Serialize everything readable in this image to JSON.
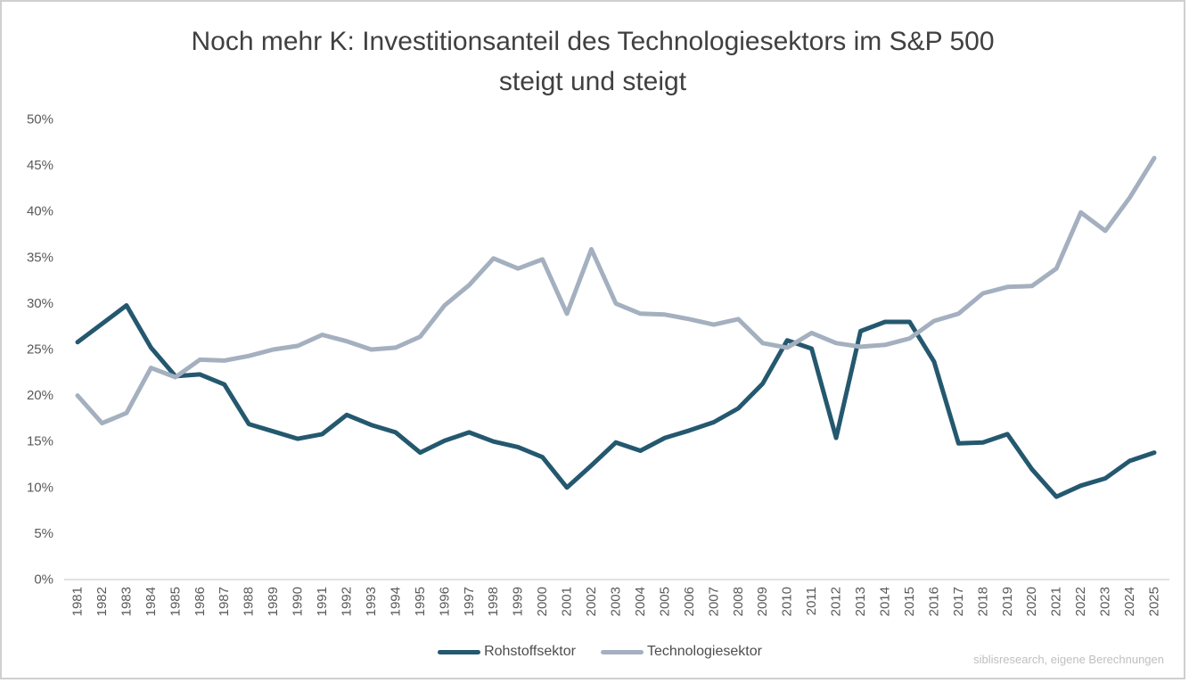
{
  "title": {
    "line1": "Noch mehr K: Investitionsanteil des Technologiesektors im S&P 500",
    "line2": "steigt und steigt"
  },
  "footer": {
    "source": "siblisresearch, eigene Berechnungen"
  },
  "legend": {
    "items": [
      {
        "label": "Rohstoffsektor",
        "color": "#24586f"
      },
      {
        "label": "Technologiesektor",
        "color": "#a4b0bf"
      }
    ]
  },
  "chart_data": {
    "type": "line",
    "title": "Noch mehr K: Investitionsanteil des Technologiesektors im S&P 500 steigt und steigt",
    "x": [
      "1981",
      "1982",
      "1983",
      "1984",
      "1985",
      "1986",
      "1987",
      "1988",
      "1989",
      "1990",
      "1991",
      "1992",
      "1993",
      "1994",
      "1995",
      "1996",
      "1997",
      "1998",
      "1999",
      "2000",
      "2001",
      "2002",
      "2003",
      "2004",
      "2005",
      "2006",
      "2007",
      "2008",
      "2009",
      "2010",
      "2011",
      "2012",
      "2013",
      "2014",
      "2015",
      "2016",
      "2017",
      "2018",
      "2019",
      "2020",
      "2021",
      "2022",
      "2023",
      "2024",
      "2025"
    ],
    "series": [
      {
        "name": "Rohstoffsektor",
        "color": "#24586f",
        "values": [
          25.8,
          27.8,
          29.8,
          25.2,
          22.1,
          22.3,
          21.2,
          16.9,
          16.1,
          15.3,
          15.8,
          17.9,
          16.8,
          16.0,
          13.8,
          15.1,
          16.0,
          15.0,
          14.4,
          13.3,
          10.0,
          12.4,
          14.9,
          14.0,
          15.4,
          16.2,
          17.1,
          18.6,
          21.3,
          26.0,
          25.1,
          15.4,
          27.0,
          28.0,
          28.0,
          23.7,
          14.8,
          14.9,
          15.8,
          12.0,
          9.0,
          10.2,
          11.0,
          12.9,
          13.8
        ]
      },
      {
        "name": "Technologiesektor",
        "color": "#a4b0bf",
        "values": [
          20.0,
          17.0,
          18.1,
          23.0,
          22.0,
          23.9,
          23.8,
          24.3,
          25.0,
          25.4,
          26.6,
          25.9,
          25.0,
          25.2,
          26.4,
          29.8,
          32.0,
          34.9,
          33.8,
          34.8,
          28.9,
          35.9,
          30.0,
          28.9,
          28.8,
          28.3,
          27.7,
          28.3,
          25.7,
          25.2,
          26.8,
          25.7,
          25.3,
          25.5,
          26.2,
          28.1,
          28.9,
          31.1,
          31.8,
          31.9,
          33.8,
          39.9,
          37.9,
          41.5,
          45.8
        ]
      }
    ],
    "xlabel": "",
    "ylabel": "",
    "ylim": [
      0,
      50
    ],
    "ytick_labels": [
      "0%",
      "5%",
      "10%",
      "15%",
      "20%",
      "25%",
      "30%",
      "35%",
      "40%",
      "45%",
      "50%"
    ],
    "grid": false,
    "legend_position": "bottom"
  }
}
